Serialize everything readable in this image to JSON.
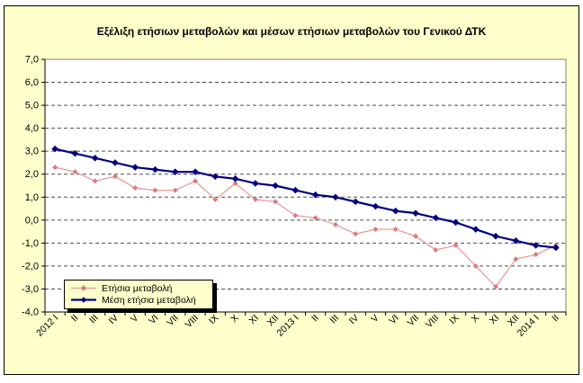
{
  "title": "Εξέλιξη ετήσιων μεταβολών και μέσων ετήσιων μεταβολών του Γενικού ΔΤΚ",
  "colors": {
    "background": "#FFFFCC",
    "plot_background": "#FFFFFF",
    "frame_border": "#000000",
    "plot_border": "#808080",
    "gridline": "#4D4D4D",
    "axis": "#000000",
    "annual_line": "#E89C9C",
    "annual_marker": "#DC7C7C",
    "average_line": "#000080"
  },
  "chart_data": {
    "type": "line",
    "title": "Εξέλιξη ετήσιων μεταβολών και μέσων ετήσιων μεταβολών του Γενικού ΔΤΚ",
    "xlabel": "",
    "ylabel": "",
    "ylim": [
      -4,
      7
    ],
    "ytick_step": 1,
    "yticks": [
      "7,0",
      "6,0",
      "5,0",
      "4,0",
      "3,0",
      "2,0",
      "1,0",
      "0,0",
      "-1,0",
      "-2,0",
      "-3,0",
      "-4,0"
    ],
    "grid": "horizontal-dashed",
    "legend_position": "inside-bottom-left",
    "categories": [
      "2012 I",
      "II",
      "III",
      "IV",
      "V",
      "VI",
      "VII",
      "VIII",
      "IX",
      "X",
      "XI",
      "XII",
      "2013 I",
      "II",
      "III",
      "IV",
      "V",
      "VI",
      "VII",
      "VIII",
      "IX",
      "X",
      "XI",
      "XII",
      "2014 I",
      "II"
    ],
    "series": [
      {
        "name": "Ετήσια μεταβολή",
        "color": "#E89C9C",
        "marker_color": "#DC7C7C",
        "line_width": 1.3,
        "marker_half_size": 3,
        "values": [
          2.3,
          2.1,
          1.7,
          1.9,
          1.4,
          1.3,
          1.3,
          1.7,
          0.9,
          1.6,
          0.9,
          0.8,
          0.2,
          0.1,
          -0.2,
          -0.6,
          -0.4,
          -0.4,
          -0.7,
          -1.3,
          -1.1,
          -2.0,
          -2.9,
          -1.7,
          -1.5,
          -1.1
        ]
      },
      {
        "name": "Μέση ετήσια μεταβολή",
        "color": "#000080",
        "marker_color": "#000080",
        "line_width": 2.2,
        "marker_half_size": 3.8,
        "values": [
          3.1,
          2.9,
          2.7,
          2.5,
          2.3,
          2.2,
          2.1,
          2.1,
          1.9,
          1.8,
          1.6,
          1.5,
          1.3,
          1.1,
          1.0,
          0.8,
          0.6,
          0.4,
          0.3,
          0.1,
          -0.1,
          -0.4,
          -0.7,
          -0.9,
          -1.1,
          -1.2
        ]
      }
    ]
  }
}
